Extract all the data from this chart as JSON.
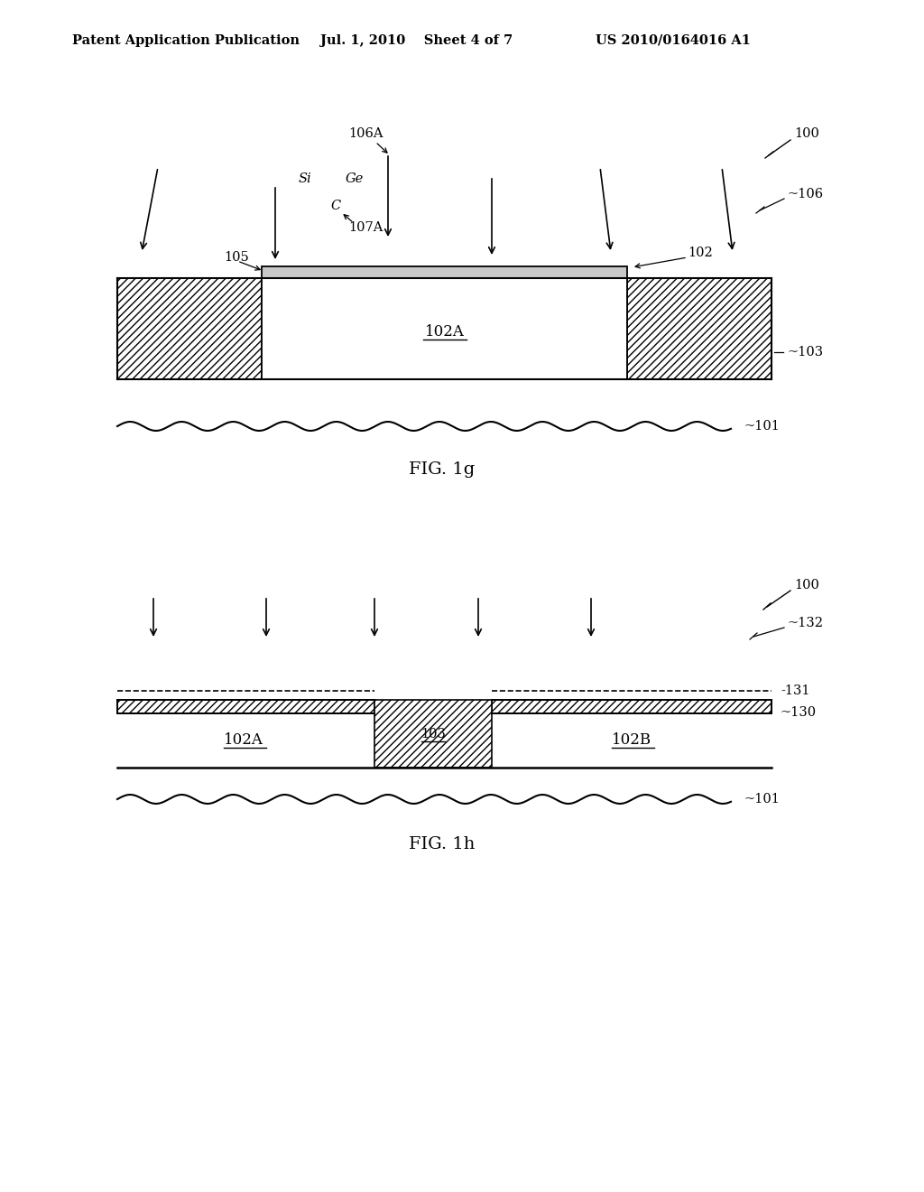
{
  "background_color": "#ffffff",
  "header": {
    "left": "Patent Application Publication",
    "center": "Jul. 1, 2010    Sheet 4 of 7",
    "right": "US 2010/0164016 A1"
  }
}
